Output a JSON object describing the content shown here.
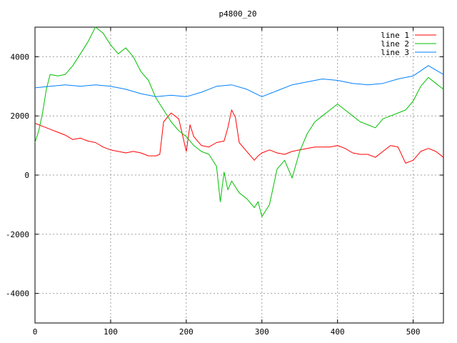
{
  "chart_data": {
    "type": "line",
    "title": "p4800_20",
    "xlabel": "",
    "ylabel": "",
    "xlim": [
      0,
      540
    ],
    "ylim": [
      -5000,
      5000
    ],
    "xticks": [
      0,
      100,
      200,
      300,
      400,
      500
    ],
    "yticks": [
      -4000,
      -2000,
      0,
      2000,
      4000
    ],
    "grid": true,
    "legend_position": "top-right",
    "series": [
      {
        "name": "line 1",
        "color": "#ff0000",
        "x": [
          0,
          10,
          20,
          30,
          40,
          50,
          60,
          70,
          80,
          90,
          100,
          110,
          120,
          130,
          140,
          150,
          160,
          165,
          170,
          180,
          190,
          200,
          205,
          210,
          220,
          230,
          240,
          250,
          255,
          260,
          265,
          270,
          280,
          290,
          295,
          300,
          310,
          320,
          330,
          340,
          350,
          360,
          370,
          380,
          390,
          400,
          410,
          420,
          430,
          440,
          450,
          460,
          470,
          480,
          490,
          500,
          510,
          520,
          530,
          540
        ],
        "y": [
          1750,
          1650,
          1550,
          1450,
          1350,
          1200,
          1250,
          1150,
          1100,
          950,
          850,
          800,
          750,
          800,
          750,
          650,
          650,
          700,
          1800,
          2100,
          1900,
          800,
          1700,
          1300,
          1000,
          950,
          1100,
          1150,
          1600,
          2200,
          1950,
          1100,
          800,
          500,
          650,
          750,
          850,
          750,
          700,
          800,
          850,
          900,
          950,
          950,
          950,
          1000,
          900,
          750,
          700,
          700,
          600,
          800,
          1000,
          950,
          400,
          500,
          800,
          900,
          800,
          600
        ]
      },
      {
        "name": "line 2",
        "color": "#00c000",
        "x": [
          0,
          5,
          10,
          15,
          20,
          30,
          40,
          50,
          60,
          70,
          80,
          90,
          100,
          110,
          120,
          130,
          140,
          150,
          160,
          170,
          180,
          190,
          200,
          210,
          220,
          230,
          240,
          245,
          250,
          255,
          260,
          265,
          270,
          280,
          290,
          295,
          300,
          310,
          320,
          330,
          340,
          350,
          360,
          370,
          380,
          390,
          400,
          410,
          420,
          430,
          440,
          450,
          460,
          470,
          480,
          490,
          500,
          510,
          520,
          530,
          540
        ],
        "y": [
          1100,
          1500,
          2100,
          2900,
          3400,
          3350,
          3400,
          3700,
          4100,
          4500,
          5000,
          4800,
          4400,
          4100,
          4300,
          4000,
          3500,
          3200,
          2600,
          2200,
          1800,
          1500,
          1300,
          1000,
          800,
          700,
          300,
          -900,
          100,
          -500,
          -200,
          -400,
          -600,
          -800,
          -1100,
          -900,
          -1400,
          -1000,
          200,
          500,
          -100,
          800,
          1400,
          1800,
          2000,
          2200,
          2400,
          2200,
          2000,
          1800,
          1700,
          1600,
          1900,
          2000,
          2100,
          2200,
          2500,
          3000,
          3300,
          3100,
          2900
        ]
      },
      {
        "name": "line 3",
        "color": "#0080ff",
        "x": [
          0,
          20,
          40,
          60,
          80,
          100,
          120,
          140,
          160,
          180,
          200,
          220,
          240,
          260,
          280,
          300,
          320,
          340,
          360,
          380,
          400,
          420,
          440,
          460,
          480,
          500,
          520,
          540
        ],
        "y": [
          2950,
          3000,
          3050,
          3000,
          3050,
          3000,
          2900,
          2750,
          2650,
          2700,
          2650,
          2800,
          3000,
          3050,
          2900,
          2650,
          2850,
          3050,
          3150,
          3250,
          3200,
          3100,
          3050,
          3100,
          3250,
          3350,
          3700,
          3400
        ]
      }
    ]
  }
}
